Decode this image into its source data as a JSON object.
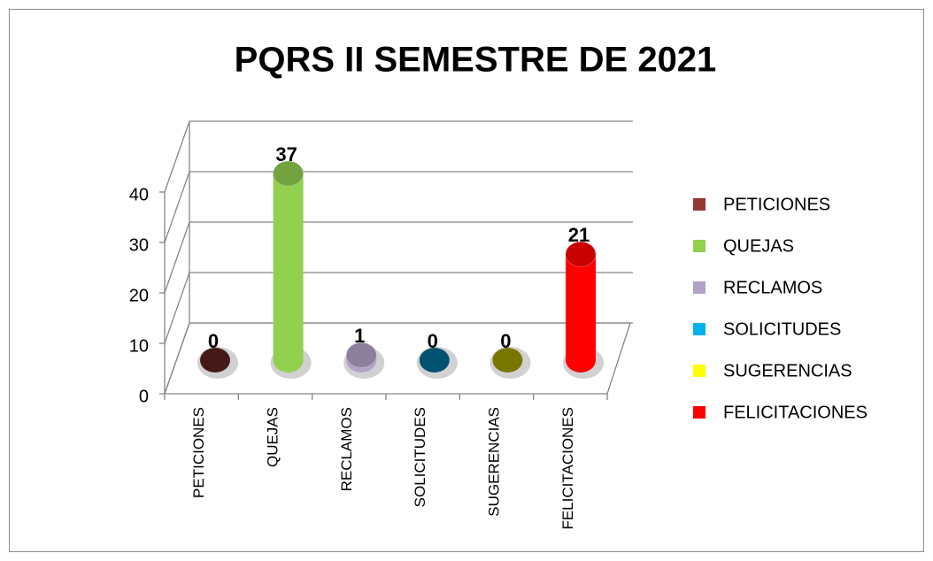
{
  "chart_data": {
    "type": "bar3d",
    "title": "PQRS II SEMESTRE DE 2021",
    "categories": [
      "PETICIONES",
      "QUEJAS",
      "RECLAMOS",
      "SOLICITUDES",
      "SUGERENCIAS",
      "FELICITACIONES"
    ],
    "values": [
      0,
      37,
      1,
      0,
      0,
      21
    ],
    "colors": [
      "#953735",
      "#92d050",
      "#b3a2c7",
      "#00b0f0",
      "#ffff00",
      "#ff0000"
    ],
    "ylim": [
      0,
      40
    ],
    "yticks": [
      0,
      10,
      20,
      30,
      40
    ],
    "grid": true,
    "legend": "right"
  }
}
